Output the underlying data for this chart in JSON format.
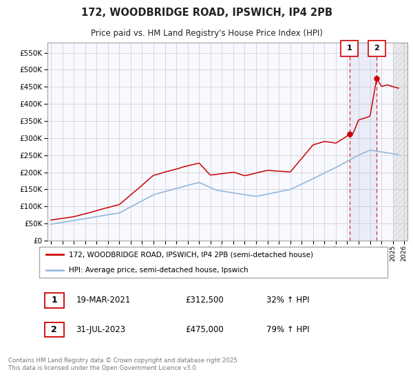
{
  "title": "172, WOODBRIDGE ROAD, IPSWICH, IP4 2PB",
  "subtitle": "Price paid vs. HM Land Registry's House Price Index (HPI)",
  "ylim": [
    0,
    580000
  ],
  "yticks": [
    0,
    50000,
    100000,
    150000,
    200000,
    250000,
    300000,
    350000,
    400000,
    450000,
    500000,
    550000
  ],
  "x_start_year": 1995,
  "x_end_year": 2026,
  "background_color": "#ffffff",
  "plot_bg_color": "#f8f8ff",
  "grid_color": "#cccccc",
  "line1_color": "#cc0000",
  "line2_color": "#99bbdd",
  "purchase1_date": 2021.21,
  "purchase1_price": 312500,
  "purchase2_date": 2023.58,
  "purchase2_price": 475000,
  "legend_line1": "172, WOODBRIDGE ROAD, IPSWICH, IP4 2PB (semi-detached house)",
  "legend_line2": "HPI: Average price, semi-detached house, Ipswich",
  "annotation1_date": "19-MAR-2021",
  "annotation1_price": "£312,500",
  "annotation1_pct": "32% ↑ HPI",
  "annotation2_date": "31-JUL-2023",
  "annotation2_price": "£475,000",
  "annotation2_pct": "79% ↑ HPI",
  "footnote": "Contains HM Land Registry data © Crown copyright and database right 2025.\nThis data is licensed under the Open Government Licence v3.0."
}
